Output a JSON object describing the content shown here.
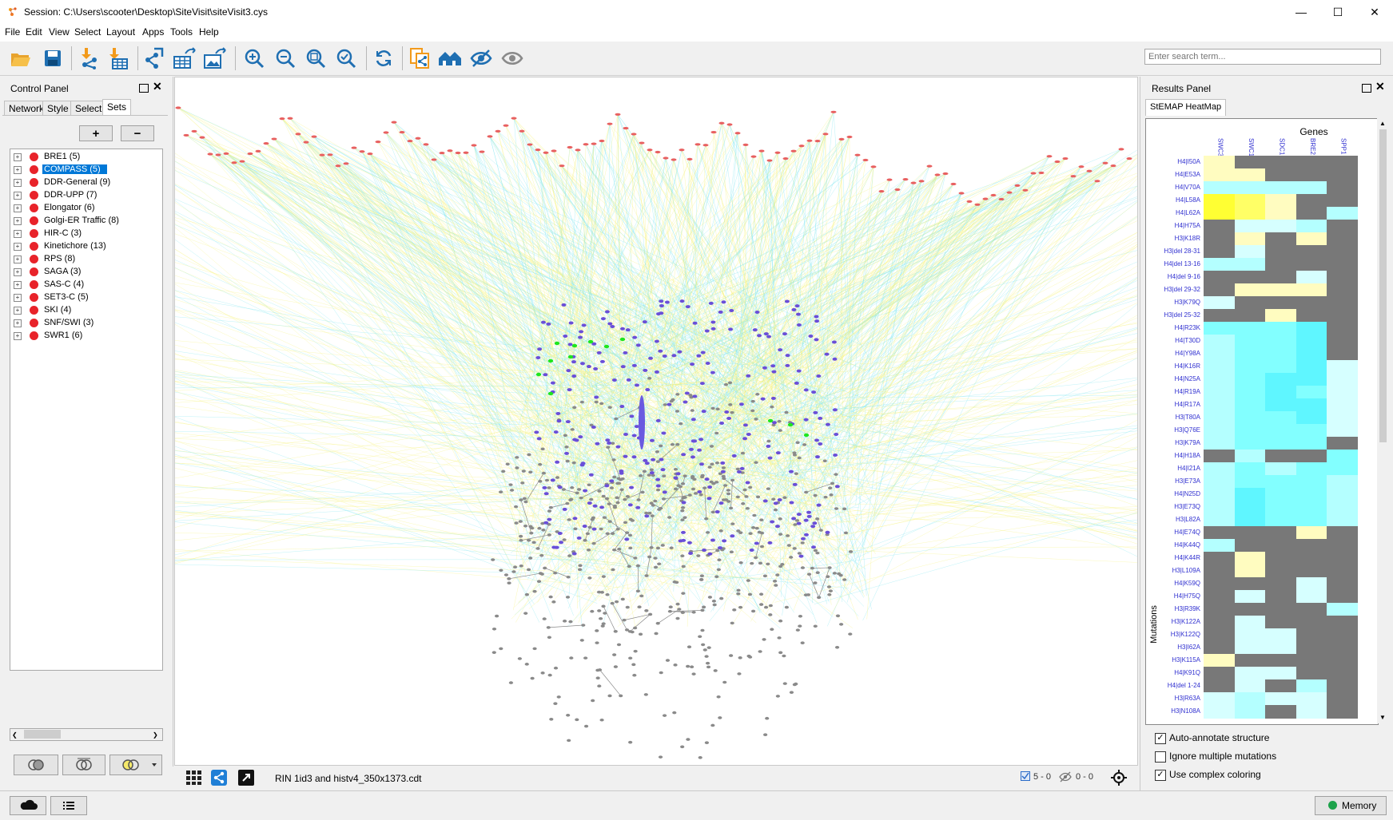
{
  "window": {
    "title": "Session: C:\\Users\\scooter\\Desktop\\SiteVisit\\siteVisit3.cys",
    "minimize": "—",
    "maximize": "☐",
    "close": "✕"
  },
  "menu": [
    "File",
    "Edit",
    "View",
    "Select",
    "Layout",
    "Apps",
    "Tools",
    "Help"
  ],
  "toolbar": {
    "search_placeholder": "Enter search term...",
    "icons": [
      "open-session-icon",
      "save-session-icon",
      "import-network-icon",
      "import-table-icon",
      "export-network-icon",
      "export-table-icon",
      "export-image-icon",
      "zoom-in-icon",
      "zoom-out-icon",
      "zoom-fit-icon",
      "zoom-selected-icon",
      "refresh-icon",
      "new-network-from-selection-icon",
      "home-icon",
      "hide-icon",
      "show-icon"
    ]
  },
  "control_panel": {
    "title": "Control Panel",
    "tabs": [
      "Network",
      "Style",
      "Select",
      "Sets"
    ],
    "active_tab": "Sets",
    "add_label": "+",
    "remove_label": "−",
    "sets": [
      {
        "label": "BRE1 (5)",
        "selected": false
      },
      {
        "label": "COMPASS (5)",
        "selected": true
      },
      {
        "label": "DDR-General (9)",
        "selected": false
      },
      {
        "label": "DDR-UPP (7)",
        "selected": false
      },
      {
        "label": "Elongator (6)",
        "selected": false
      },
      {
        "label": "Golgi-ER Traffic (8)",
        "selected": false
      },
      {
        "label": "HIR-C (3)",
        "selected": false
      },
      {
        "label": "Kinetichore (13)",
        "selected": false
      },
      {
        "label": "RPS (8)",
        "selected": false
      },
      {
        "label": "SAGA (3)",
        "selected": false
      },
      {
        "label": "SAS-C (4)",
        "selected": false
      },
      {
        "label": "SET3-C (5)",
        "selected": false
      },
      {
        "label": "SKI (4)",
        "selected": false
      },
      {
        "label": "SNF/SWI (3)",
        "selected": false
      },
      {
        "label": "SWR1 (6)",
        "selected": false
      }
    ]
  },
  "network_view": {
    "network_name": "RIN 1id3 and histv4_350x1373.cdt",
    "selected_nodes": "5 - 0",
    "hidden": "0 - 0"
  },
  "results_panel": {
    "title": "Results Panel",
    "tab": "StEMAP HeatMap",
    "heatmap": {
      "top_label": "Genes",
      "side_label": "Mutations",
      "columns": [
        "SWC3",
        "SWC1",
        "SDC1",
        "BRE2",
        "SPP1"
      ],
      "rows": [
        "H4|I50A",
        "H4|E53A",
        "H4|V70A",
        "H4|L58A",
        "H4|L62A",
        "H4|H75A",
        "H3|K18R",
        "H3|del 28-31",
        "H4|del 13-16",
        "H4|del 9-16",
        "H3|del 29-32",
        "H3|K79Q",
        "H3|del 25-32",
        "H4|R23K",
        "H4|T30D",
        "H4|Y98A",
        "H4|K16R",
        "H4|N25A",
        "H4|R19A",
        "H4|R17A",
        "H3|T80A",
        "H3|Q76E",
        "H3|K79A",
        "H4|H18A",
        "H4|I21A",
        "H3|E73A",
        "H4|N25D",
        "H3|E73Q",
        "H3|L82A",
        "H4|E74Q",
        "H4|K44Q",
        "H4|K44R",
        "H3|L109A",
        "H4|K59Q",
        "H4|H75Q",
        "H3|R39K",
        "H3|K122A",
        "H3|K122Q",
        "H3|I62A",
        "H3|K115A",
        "H4|K91Q",
        "H4|del 1-24",
        "H3|R63A",
        "H3|N108A"
      ],
      "cells": [
        [
          "Y1",
          "G",
          "G",
          "G",
          "G"
        ],
        [
          "Y1",
          "Y1",
          "G",
          "G",
          "G"
        ],
        [
          "C1",
          "C1",
          "C1",
          "C1",
          "G"
        ],
        [
          "Y3",
          "Y2",
          "Y1",
          "G",
          "G"
        ],
        [
          "Y3",
          "Y2",
          "Y1",
          "G",
          "C1"
        ],
        [
          "G",
          "C0",
          "C0",
          "C1",
          "G"
        ],
        [
          "G",
          "Y1",
          "G",
          "Y1",
          "G"
        ],
        [
          "G",
          "C0",
          "G",
          "G",
          "G"
        ],
        [
          "C1",
          "C1",
          "G",
          "G",
          "G"
        ],
        [
          "G",
          "G",
          "G",
          "C0",
          "G"
        ],
        [
          "G",
          "Y1",
          "Y1",
          "Y1",
          "G"
        ],
        [
          "C0",
          "G",
          "G",
          "G",
          "G"
        ],
        [
          "G",
          "G",
          "Y1",
          "G",
          "G"
        ],
        [
          "C2",
          "C2",
          "C2",
          "C3",
          "G"
        ],
        [
          "C1",
          "C2",
          "C2",
          "C3",
          "G"
        ],
        [
          "C1",
          "C2",
          "C2",
          "C3",
          "G"
        ],
        [
          "C1",
          "C2",
          "C2",
          "C3",
          "C0"
        ],
        [
          "C1",
          "C2",
          "C3",
          "C3",
          "C0"
        ],
        [
          "C1",
          "C2",
          "C3",
          "C2",
          "C0"
        ],
        [
          "C1",
          "C2",
          "C3",
          "C3",
          "C0"
        ],
        [
          "C1",
          "C2",
          "C2",
          "C3",
          "C0"
        ],
        [
          "C1",
          "C2",
          "C2",
          "C2",
          "C0"
        ],
        [
          "C1",
          "C2",
          "C2",
          "C2",
          "G"
        ],
        [
          "G",
          "C1",
          "G",
          "G",
          "C2"
        ],
        [
          "C1",
          "C2",
          "C1",
          "C2",
          "C2"
        ],
        [
          "C1",
          "C2",
          "C2",
          "C2",
          "C1"
        ],
        [
          "C1",
          "C3",
          "C2",
          "C2",
          "C1"
        ],
        [
          "C1",
          "C3",
          "C2",
          "C2",
          "C1"
        ],
        [
          "C1",
          "C3",
          "C2",
          "C2",
          "C1"
        ],
        [
          "G",
          "G",
          "G",
          "Y1",
          "G"
        ],
        [
          "C1",
          "G",
          "G",
          "G",
          "G"
        ],
        [
          "G",
          "Y1",
          "G",
          "G",
          "G"
        ],
        [
          "G",
          "Y1",
          "G",
          "G",
          "G"
        ],
        [
          "G",
          "G",
          "G",
          "C0",
          "G"
        ],
        [
          "G",
          "C0",
          "G",
          "C0",
          "G"
        ],
        [
          "G",
          "G",
          "G",
          "G",
          "C1"
        ],
        [
          "G",
          "C0",
          "G",
          "G",
          "G"
        ],
        [
          "G",
          "C0",
          "C0",
          "G",
          "G"
        ],
        [
          "G",
          "C0",
          "C0",
          "G",
          "G"
        ],
        [
          "Y1",
          "G",
          "G",
          "G",
          "G"
        ],
        [
          "G",
          "C0",
          "C0",
          "G",
          "G"
        ],
        [
          "G",
          "C0",
          "G",
          "C1",
          "G"
        ],
        [
          "C0",
          "C1",
          "C0",
          "C0",
          "G"
        ],
        [
          "C0",
          "C1",
          "G",
          "C0",
          "G"
        ]
      ]
    },
    "options": [
      {
        "label": "Auto-annotate structure",
        "checked": true
      },
      {
        "label": "Ignore multiple mutations",
        "checked": false
      },
      {
        "label": "Use complex coloring",
        "checked": true
      }
    ]
  },
  "status": {
    "memory_label": "Memory"
  },
  "colors": {
    "Y1": "#fffcc0",
    "Y2": "#ffff66",
    "Y3": "#ffff33",
    "C0": "#d6ffff",
    "C1": "#b4ffff",
    "C2": "#82ffff",
    "C3": "#5ff6ff",
    "G": "#787878",
    "selection": "#0078d7",
    "set_dot": "#e8232a"
  }
}
